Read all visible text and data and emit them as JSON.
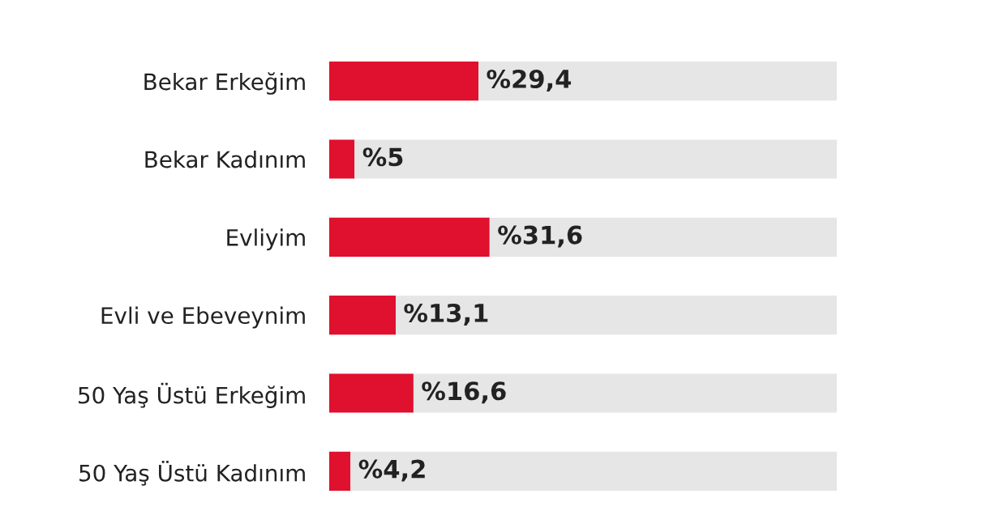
{
  "chart_data": {
    "type": "bar",
    "orientation": "horizontal",
    "stacked": true,
    "categories": [
      "Bekar Erkeğim",
      "Bekar Kadınım",
      "Evliyim",
      "Evli ve Ebeveynim",
      "50 Yaş Üstü Erkeğim",
      "50 Yaş Üstü Kadınım"
    ],
    "series": [
      {
        "color": "#e0102f",
        "values": [
          29.4,
          5,
          31.6,
          13.1,
          16.6,
          4.2
        ],
        "value_labels": [
          "%29,4",
          "%5",
          "%31,6",
          "%13,1",
          "%16,6",
          "%4,2"
        ]
      },
      {
        "color": "#e6e6e6",
        "values": [
          70.6,
          95,
          68.4,
          86.9,
          83.4,
          95.8
        ]
      }
    ],
    "xlim": [
      0,
      100
    ],
    "tick_labels": "y",
    "grid": false,
    "legend": false
  }
}
